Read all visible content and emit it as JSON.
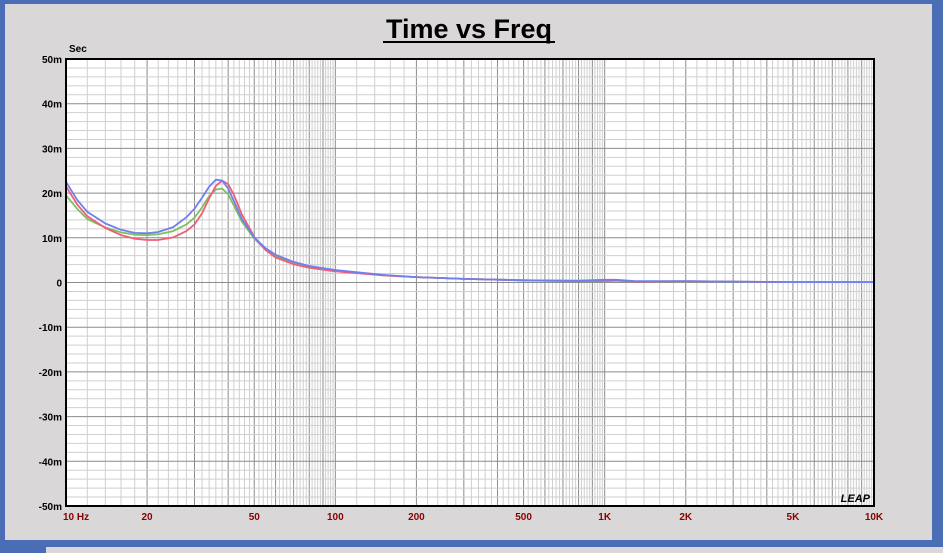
{
  "chart_data": {
    "type": "line",
    "title": "Time vs Freq",
    "ylabel": "Sec",
    "xscale": "log",
    "xlim": [
      10,
      10000
    ],
    "ylim": [
      -0.05,
      0.05
    ],
    "x_ticks": [
      {
        "value": 10,
        "label": "10  Hz"
      },
      {
        "value": 20,
        "label": "20"
      },
      {
        "value": 50,
        "label": "50"
      },
      {
        "value": 100,
        "label": "100"
      },
      {
        "value": 200,
        "label": "200"
      },
      {
        "value": 500,
        "label": "500"
      },
      {
        "value": 1000,
        "label": "1K"
      },
      {
        "value": 2000,
        "label": "2K"
      },
      {
        "value": 5000,
        "label": "5K"
      },
      {
        "value": 10000,
        "label": "10K"
      }
    ],
    "y_ticks": [
      {
        "value": 0.05,
        "label": "50m"
      },
      {
        "value": 0.04,
        "label": "40m"
      },
      {
        "value": 0.03,
        "label": "30m"
      },
      {
        "value": 0.02,
        "label": "20m"
      },
      {
        "value": 0.01,
        "label": "10m"
      },
      {
        "value": 0,
        "label": "0"
      },
      {
        "value": -0.01,
        "label": "-10m"
      },
      {
        "value": -0.02,
        "label": "-20m"
      },
      {
        "value": -0.03,
        "label": "-30m"
      },
      {
        "value": -0.04,
        "label": "-40m"
      },
      {
        "value": -0.05,
        "label": "-50m"
      }
    ],
    "grid": true,
    "logo": "LEAP",
    "series": [
      {
        "color": "#7fbf5f",
        "points": [
          [
            10,
            0.0195
          ],
          [
            11,
            0.0165
          ],
          [
            12,
            0.0142
          ],
          [
            14,
            0.0123
          ],
          [
            16,
            0.0112
          ],
          [
            18,
            0.0107
          ],
          [
            20,
            0.0106
          ],
          [
            22,
            0.0108
          ],
          [
            25,
            0.0115
          ],
          [
            28,
            0.013
          ],
          [
            30,
            0.0145
          ],
          [
            32,
            0.0168
          ],
          [
            34,
            0.0193
          ],
          [
            36,
            0.0208
          ],
          [
            38,
            0.021
          ],
          [
            40,
            0.0197
          ],
          [
            42,
            0.0172
          ],
          [
            45,
            0.0136
          ],
          [
            50,
            0.0098
          ],
          [
            55,
            0.0074
          ],
          [
            60,
            0.0059
          ],
          [
            70,
            0.0043
          ],
          [
            80,
            0.0035
          ],
          [
            100,
            0.0026
          ],
          [
            150,
            0.0016
          ],
          [
            200,
            0.0012
          ],
          [
            300,
            0.0008
          ],
          [
            500,
            0.0005
          ],
          [
            800,
            0.0003
          ],
          [
            1000,
            0.0003
          ],
          [
            1100,
            0.0004
          ],
          [
            1300,
            0.0002
          ],
          [
            2000,
            0.0002
          ],
          [
            5000,
            0.0001
          ],
          [
            10000,
            0.0001
          ]
        ]
      },
      {
        "color": "#ee5f76",
        "points": [
          [
            10,
            0.0215
          ],
          [
            11,
            0.0175
          ],
          [
            12,
            0.0148
          ],
          [
            14,
            0.0122
          ],
          [
            16,
            0.0106
          ],
          [
            18,
            0.0098
          ],
          [
            20,
            0.0095
          ],
          [
            22,
            0.0095
          ],
          [
            25,
            0.0101
          ],
          [
            28,
            0.0115
          ],
          [
            30,
            0.013
          ],
          [
            32,
            0.0155
          ],
          [
            34,
            0.0188
          ],
          [
            36,
            0.0216
          ],
          [
            38,
            0.0228
          ],
          [
            40,
            0.022
          ],
          [
            42,
            0.0196
          ],
          [
            45,
            0.0152
          ],
          [
            50,
            0.0102
          ],
          [
            55,
            0.0073
          ],
          [
            60,
            0.0056
          ],
          [
            70,
            0.0041
          ],
          [
            80,
            0.0033
          ],
          [
            100,
            0.0025
          ],
          [
            150,
            0.0016
          ],
          [
            200,
            0.0012
          ],
          [
            300,
            0.0008
          ],
          [
            500,
            0.0005
          ],
          [
            800,
            0.0003
          ],
          [
            1000,
            0.0004
          ],
          [
            1100,
            0.0005
          ],
          [
            1300,
            0.0002
          ],
          [
            2000,
            0.0003
          ],
          [
            5000,
            0.0001
          ],
          [
            10000,
            0.0001
          ]
        ]
      },
      {
        "color": "#6f7ff0",
        "points": [
          [
            10,
            0.0225
          ],
          [
            11,
            0.0185
          ],
          [
            12,
            0.0158
          ],
          [
            14,
            0.0132
          ],
          [
            16,
            0.0118
          ],
          [
            18,
            0.0111
          ],
          [
            20,
            0.011
          ],
          [
            22,
            0.0113
          ],
          [
            25,
            0.0124
          ],
          [
            28,
            0.0146
          ],
          [
            30,
            0.0165
          ],
          [
            32,
            0.019
          ],
          [
            34,
            0.0214
          ],
          [
            36,
            0.023
          ],
          [
            38,
            0.0228
          ],
          [
            40,
            0.021
          ],
          [
            42,
            0.0182
          ],
          [
            45,
            0.0142
          ],
          [
            50,
            0.0101
          ],
          [
            55,
            0.0077
          ],
          [
            60,
            0.0062
          ],
          [
            70,
            0.0046
          ],
          [
            80,
            0.0037
          ],
          [
            100,
            0.0028
          ],
          [
            150,
            0.0017
          ],
          [
            200,
            0.0012
          ],
          [
            300,
            0.0008
          ],
          [
            500,
            0.0005
          ],
          [
            800,
            0.0004
          ],
          [
            1000,
            0.0006
          ],
          [
            1100,
            0.0006
          ],
          [
            1300,
            0.0003
          ],
          [
            2000,
            0.0003
          ],
          [
            5000,
            0.0001
          ],
          [
            10000,
            0.0001
          ]
        ]
      }
    ]
  }
}
